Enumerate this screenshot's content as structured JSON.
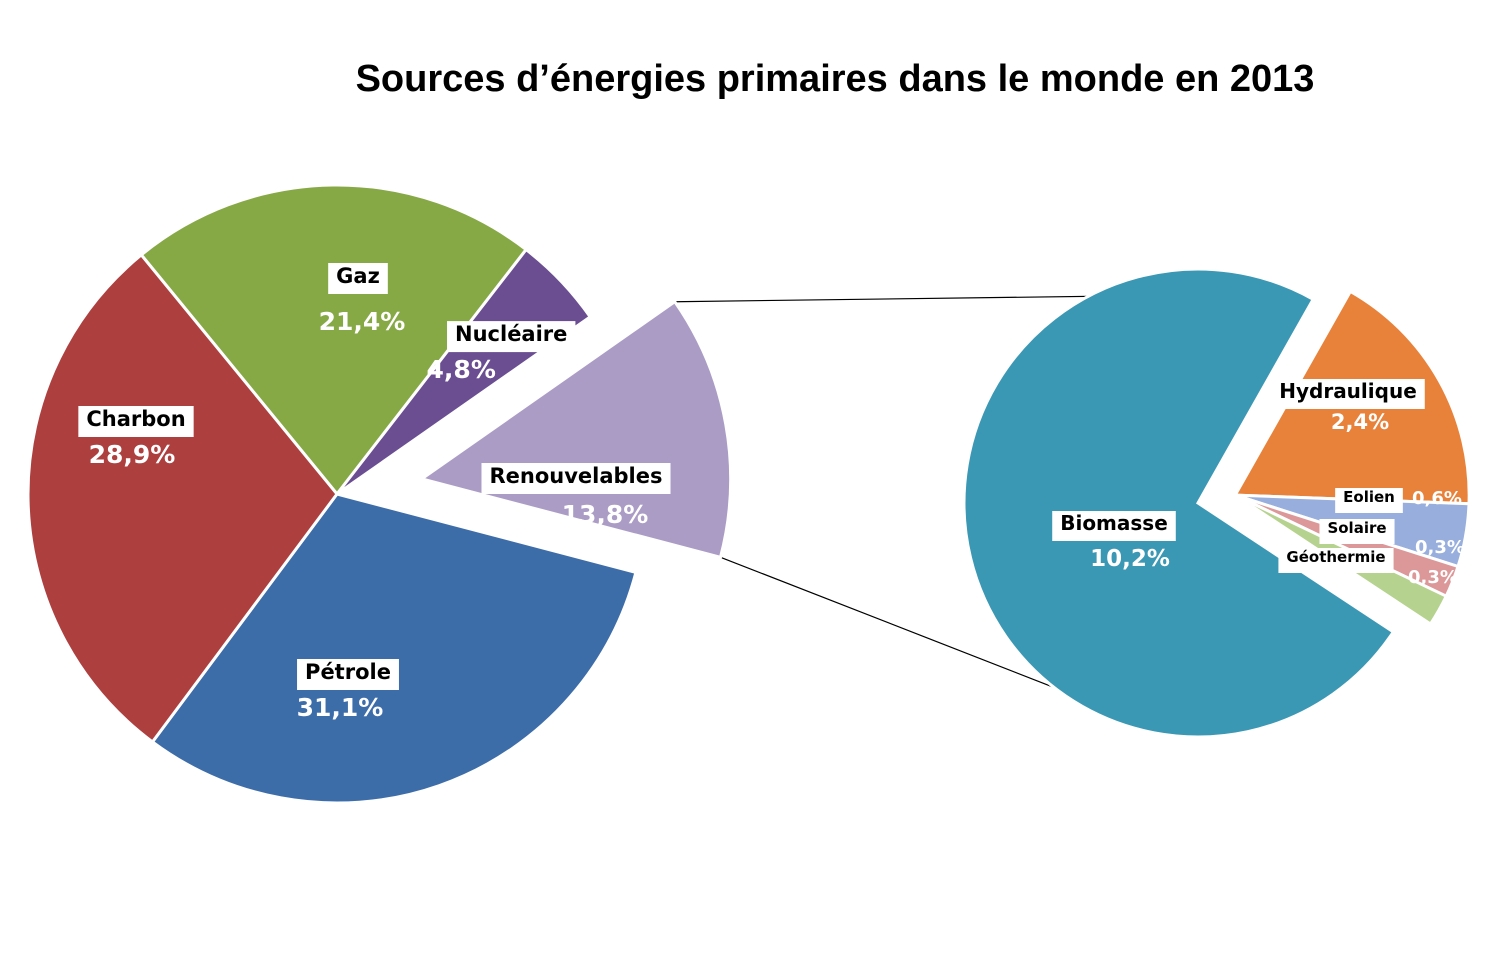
{
  "chart_data": [
    {
      "type": "pie",
      "title": "Sources d’énergies primaires dans le monde en 2013",
      "slices": [
        {
          "name": "Gaz",
          "value": 21.4,
          "label": "21,4%",
          "color": "#86A946"
        },
        {
          "name": "Nucléaire",
          "value": 4.8,
          "label": "4,8%",
          "color": "#6A4E91"
        },
        {
          "name": "Renouvelables",
          "value": 13.8,
          "label": "13,8%",
          "color": "#AB9CC6",
          "exploded": true
        },
        {
          "name": "Pétrole",
          "value": 31.1,
          "label": "31,1%",
          "color": "#3D6DA8"
        },
        {
          "name": "Charbon",
          "value": 28.9,
          "label": "28,9%",
          "color": "#AD3F3F"
        }
      ]
    },
    {
      "type": "pie",
      "slices": [
        {
          "name": "Hydraulique",
          "value": 2.4,
          "label": "2,4%",
          "color": "#E8823A",
          "exploded": true
        },
        {
          "name": "Eolien",
          "value": 0.6,
          "label": "0,6%",
          "color": "#98AEDC",
          "exploded": true
        },
        {
          "name": "Solaire",
          "value": 0.3,
          "label": "0,3%",
          "color": "#DC9898",
          "exploded": true
        },
        {
          "name": "Géothermie",
          "value": 0.3,
          "label": "0,3%",
          "color": "#B5D28E",
          "exploded": true
        },
        {
          "name": "Biomasse",
          "value": 10.2,
          "label": "10,2%",
          "color": "#3B98B4"
        }
      ]
    }
  ]
}
